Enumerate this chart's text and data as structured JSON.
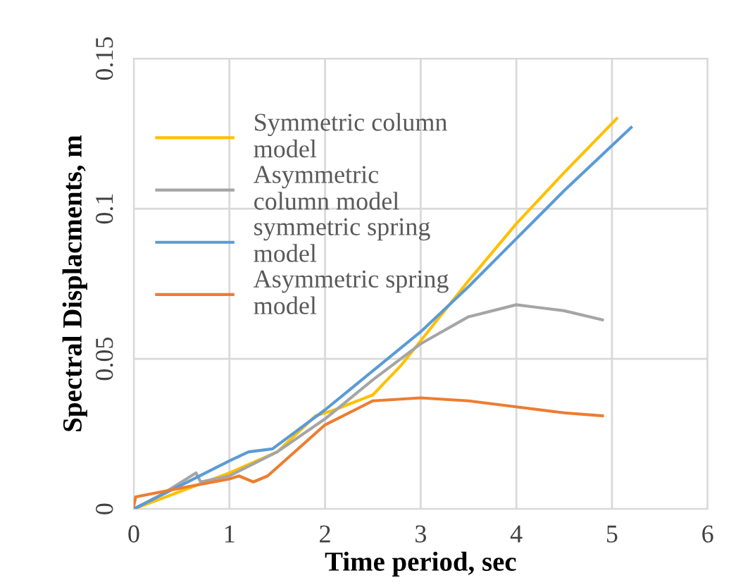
{
  "chart_data": {
    "type": "line",
    "xlabel": "Time period, sec",
    "ylabel": "Spectral Displacments, m",
    "xlim": [
      0,
      6
    ],
    "xticks": [
      0,
      1,
      2,
      3,
      4,
      5,
      6
    ],
    "ylim": [
      0,
      0.15
    ],
    "yticks": [
      0,
      0.05,
      0.1,
      0.15
    ],
    "grid": true,
    "legend": "top left",
    "marker": "none",
    "line_style": "solid",
    "series": [
      {
        "name": "Symmetric column\nmodel",
        "color": "#ffc000",
        "x": [
          0,
          0.5,
          1,
          1.5,
          1.9,
          2.1,
          2.5,
          2.8,
          3,
          3.5,
          4,
          4.5,
          5.05
        ],
        "values": [
          0,
          0.006,
          0.012,
          0.019,
          0.031,
          0.033,
          0.038,
          0.048,
          0.056,
          0.076,
          0.095,
          0.112,
          0.13
        ]
      },
      {
        "name": "Asymmetric\ncolumn model",
        "color": "#a5a5a5",
        "x": [
          0,
          0.3,
          0.65,
          0.7,
          1,
          1.5,
          2,
          2.5,
          3,
          3.5,
          4,
          4.5,
          4.9
        ],
        "values": [
          0,
          0.005,
          0.012,
          0.009,
          0.011,
          0.019,
          0.03,
          0.043,
          0.055,
          0.064,
          0.068,
          0.066,
          0.063
        ]
      },
      {
        "name": "symmetric spring\nmodel",
        "color": "#5b9bd5",
        "x": [
          0,
          0.5,
          1,
          1.2,
          1.45,
          2,
          2.5,
          3,
          3.5,
          4,
          4.5,
          5.2
        ],
        "values": [
          0,
          0.008,
          0.016,
          0.019,
          0.02,
          0.033,
          0.046,
          0.059,
          0.074,
          0.09,
          0.106,
          0.127
        ]
      },
      {
        "name": "Asymmetric spring\nmodel",
        "color": "#ed7d31",
        "x": [
          0,
          0.02,
          0.5,
          1,
          1.1,
          1.25,
          1.4,
          2,
          2.5,
          3,
          3.5,
          4,
          4.5,
          4.9
        ],
        "values": [
          0.001,
          0.004,
          0.007,
          0.01,
          0.011,
          0.009,
          0.011,
          0.028,
          0.036,
          0.037,
          0.036,
          0.034,
          0.032,
          0.031
        ]
      }
    ]
  }
}
